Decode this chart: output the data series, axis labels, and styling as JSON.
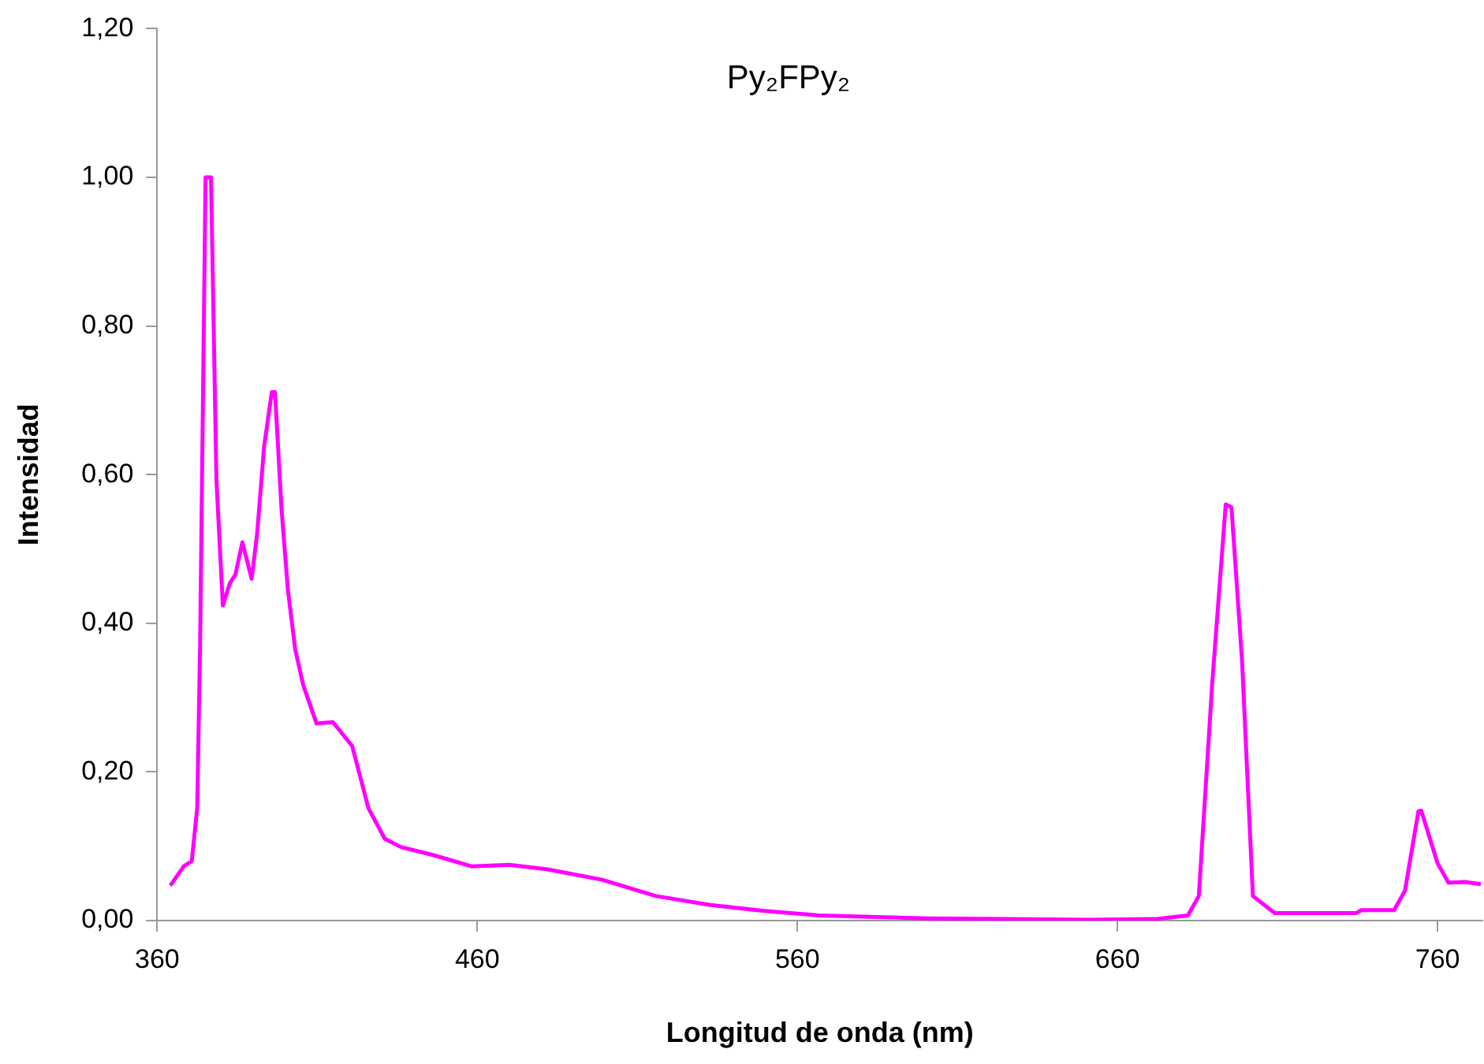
{
  "chart_data": {
    "type": "line",
    "title": "Py₂FPy₂",
    "xlabel": "Longitud de onda (nm)",
    "ylabel": "Intensidad",
    "xlim": [
      360,
      774
    ],
    "xticks": [
      360,
      460,
      560,
      660,
      760
    ],
    "ylim": [
      0,
      1.2
    ],
    "yticks": [
      {
        "value": 0,
        "label": "0,00"
      },
      {
        "value": 0.2,
        "label": "0,20"
      },
      {
        "value": 0.4,
        "label": "0,40"
      },
      {
        "value": 0.6,
        "label": "0,60"
      },
      {
        "value": 0.8,
        "label": "0,80"
      },
      {
        "value": 1.0,
        "label": "1,00"
      },
      {
        "value": 1.2,
        "label": "1,20"
      }
    ],
    "grid": false,
    "legend": false,
    "marker": "none",
    "line_style": "solid",
    "series": [
      {
        "color": "#ff00ff",
        "x": [
          364.1,
          368.3,
          370.8,
          372.5,
          373.4,
          375.1,
          376.8,
          378.5,
          380.5,
          382.7,
          384.4,
          386.6,
          389.5,
          391.2,
          393.4,
          395.8,
          396.8,
          398.8,
          400.8,
          403.1,
          405.6,
          409.8,
          414.9,
          420.9,
          426,
          431.1,
          436.1,
          446.3,
          458.2,
          470,
          481.9,
          498.9,
          515.8,
          532.8,
          549.7,
          566.7,
          600.6,
          651.5,
          671.8,
          682,
          685.4,
          689.6,
          693.8,
          695.6,
          698.9,
          702.3,
          709.1,
          734.5,
          736.2,
          746.4,
          749.8,
          754,
          754.9,
          760,
          763.4,
          768.4,
          773.5
        ],
        "values": [
          0.047,
          0.073,
          0.08,
          0.151,
          0.372,
          1.0,
          1.0,
          0.593,
          0.424,
          0.454,
          0.465,
          0.509,
          0.46,
          0.52,
          0.638,
          0.711,
          0.711,
          0.556,
          0.446,
          0.365,
          0.317,
          0.265,
          0.267,
          0.235,
          0.151,
          0.11,
          0.099,
          0.088,
          0.073,
          0.075,
          0.069,
          0.055,
          0.033,
          0.021,
          0.013,
          0.007,
          0.003,
          0.001,
          0.002,
          0.007,
          0.033,
          0.32,
          0.56,
          0.556,
          0.35,
          0.033,
          0.01,
          0.01,
          0.014,
          0.014,
          0.04,
          0.147,
          0.148,
          0.077,
          0.051,
          0.052,
          0.049
        ]
      }
    ]
  }
}
